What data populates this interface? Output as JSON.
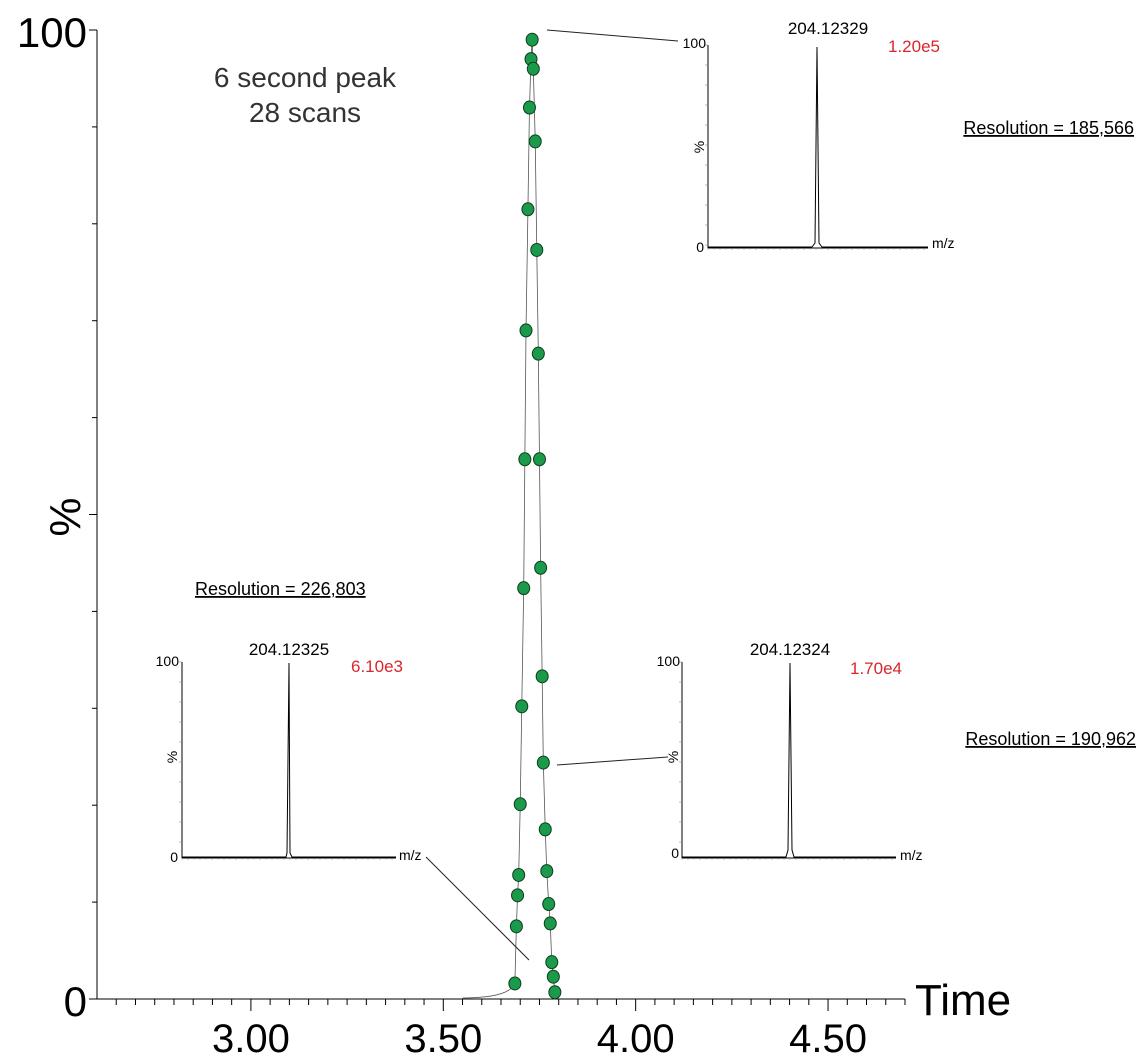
{
  "chart_data": {
    "type": "scatter",
    "title": "",
    "xlabel": "Time",
    "ylabel": "%",
    "xlim": [
      2.6,
      4.7
    ],
    "ylim": [
      0,
      100
    ],
    "x_ticks": [
      "3.00",
      "3.50",
      "4.00",
      "4.50"
    ],
    "x_tick_values": [
      3.0,
      3.5,
      4.0,
      4.5
    ],
    "y_ticks": [
      "0",
      "100"
    ],
    "y_tick_values": [
      0,
      100
    ],
    "grid": false,
    "marker_color": "#1a9a4a",
    "line_color": "#555555",
    "annotation": [
      "6 second peak",
      "28 scans"
    ],
    "series": [
      {
        "points": [
          [
            3.686,
            1.6
          ],
          [
            3.69,
            7.5
          ],
          [
            3.693,
            10.7
          ],
          [
            3.696,
            12.8
          ],
          [
            3.7,
            20.1
          ],
          [
            3.704,
            30.2
          ],
          [
            3.709,
            42.4
          ],
          [
            3.712,
            55.7
          ],
          [
            3.715,
            69.0
          ],
          [
            3.72,
            81.5
          ],
          [
            3.724,
            92.0
          ],
          [
            3.728,
            97.0
          ],
          [
            3.731,
            99.0
          ],
          [
            3.734,
            96.0
          ],
          [
            3.739,
            88.5
          ],
          [
            3.743,
            77.3
          ],
          [
            3.747,
            66.6
          ],
          [
            3.75,
            55.7
          ],
          [
            3.753,
            44.5
          ],
          [
            3.757,
            33.3
          ],
          [
            3.76,
            24.4
          ],
          [
            3.765,
            17.5
          ],
          [
            3.769,
            13.2
          ],
          [
            3.774,
            9.8
          ],
          [
            3.778,
            7.8
          ],
          [
            3.782,
            3.8
          ],
          [
            3.786,
            2.3
          ],
          [
            3.79,
            0.7
          ]
        ]
      }
    ]
  },
  "insets": [
    {
      "mz_label": "204.12329",
      "intensity_label": "1.20e5",
      "resolution_label": "Resolution = 185,566",
      "y_top": "100",
      "y_bottom": "0",
      "y_axis": "%",
      "x_axis": "m/z"
    },
    {
      "mz_label": "204.12325",
      "intensity_label": "6.10e3",
      "resolution_label": "Resolution = 226,803",
      "y_top": "100",
      "y_bottom": "0",
      "y_axis": "%",
      "x_axis": "m/z"
    },
    {
      "mz_label": "204.12324",
      "intensity_label": "1.70e4",
      "resolution_label": "Resolution = 190,962",
      "y_top": "100",
      "y_bottom": "0",
      "y_axis": "%",
      "x_axis": "m/z"
    }
  ]
}
